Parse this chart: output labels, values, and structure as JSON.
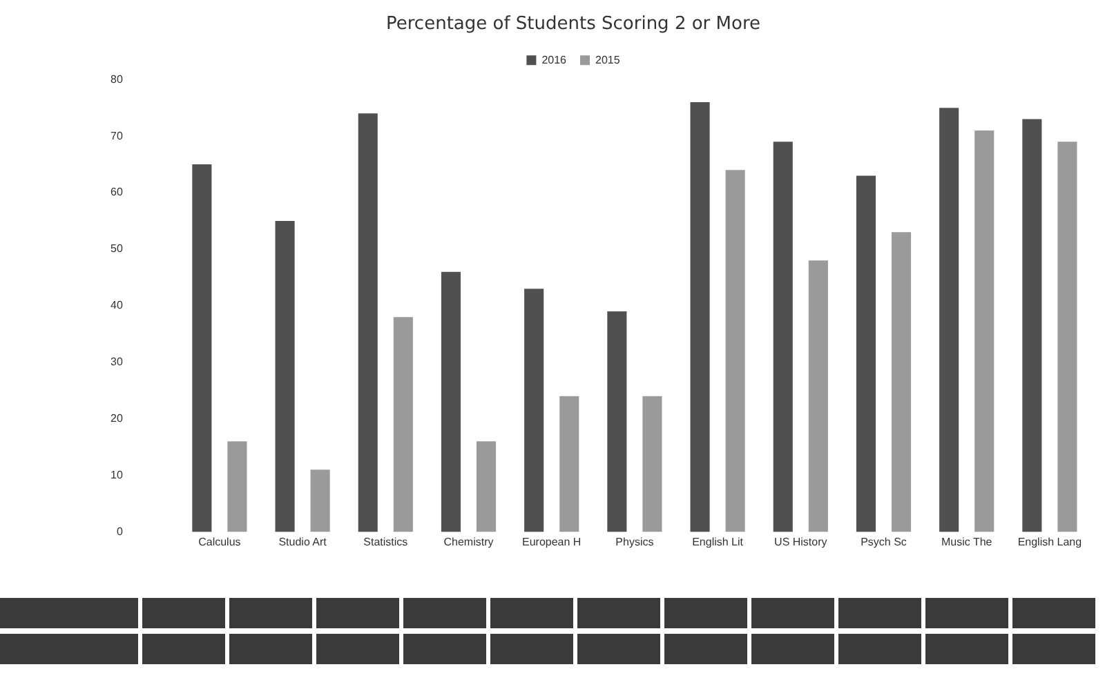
{
  "chart_data": {
    "type": "bar",
    "title": "Percentage of Students Scoring 2 or More",
    "categories": [
      "Calculus",
      "Studio Art",
      "Statistics",
      "Chemistry",
      "European H",
      "Physics",
      "English Lit",
      "US History",
      "Psych Sc",
      "Music The",
      "English Lang"
    ],
    "series": [
      {
        "name": "2016",
        "color": "#505050",
        "values": [
          65,
          55,
          74,
          46,
          43,
          39,
          76,
          69,
          63,
          75,
          73
        ]
      },
      {
        "name": "2015",
        "color": "#9a9a9a",
        "values": [
          16,
          11,
          38,
          16,
          24,
          24,
          64,
          48,
          53,
          71,
          69
        ]
      }
    ],
    "ylim": [
      0,
      80
    ],
    "yticks": [
      0,
      10,
      20,
      30,
      40,
      50,
      60,
      70,
      80
    ],
    "grid": false,
    "legend": "top"
  }
}
